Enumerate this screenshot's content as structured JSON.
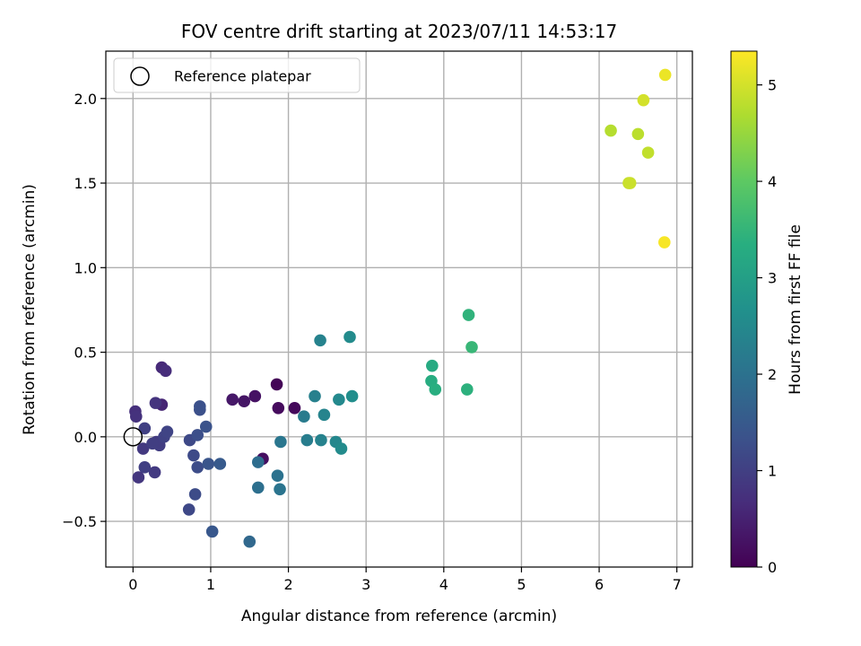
{
  "chart_data": {
    "type": "scatter",
    "title": "FOV centre drift starting at 2023/07/11 14:53:17",
    "xlabel": "Angular distance from reference (arcmin)",
    "ylabel": "Rotation from reference (arcmin)",
    "xlim": [
      -0.35,
      7.2
    ],
    "ylim": [
      -0.77,
      2.28
    ],
    "xticks": [
      0,
      1,
      2,
      3,
      4,
      5,
      6,
      7
    ],
    "yticks": [
      -0.5,
      0.0,
      0.5,
      1.0,
      1.5,
      2.0
    ],
    "xtick_labels": [
      "0",
      "1",
      "2",
      "3",
      "4",
      "5",
      "6",
      "7"
    ],
    "ytick_labels": [
      "−0.5",
      "0.0",
      "0.5",
      "1.0",
      "1.5",
      "2.0"
    ],
    "grid": true,
    "legend": {
      "placement": "top-left",
      "label": "Reference platepar"
    },
    "reference_point": {
      "x": 0.0,
      "y": 0.0
    },
    "colorbar": {
      "label": "Hours from first FF file",
      "range": [
        0,
        5.35
      ],
      "ticks": [
        0,
        1,
        2,
        3,
        4,
        5
      ],
      "tick_labels": [
        "0",
        "1",
        "2",
        "3",
        "4",
        "5"
      ],
      "colormap": "viridis"
    },
    "points": [
      {
        "x": 1.85,
        "y": 0.31,
        "c": 0.05
      },
      {
        "x": 2.08,
        "y": 0.17,
        "c": 0.1
      },
      {
        "x": 1.87,
        "y": 0.17,
        "c": 0.15
      },
      {
        "x": 1.67,
        "y": -0.13,
        "c": 0.2
      },
      {
        "x": 1.57,
        "y": 0.24,
        "c": 0.25
      },
      {
        "x": 1.43,
        "y": 0.21,
        "c": 0.3
      },
      {
        "x": 1.28,
        "y": 0.22,
        "c": 0.35
      },
      {
        "x": 0.37,
        "y": 0.19,
        "c": 0.55
      },
      {
        "x": 0.37,
        "y": 0.41,
        "c": 0.62
      },
      {
        "x": 0.42,
        "y": 0.39,
        "c": 0.68
      },
      {
        "x": 0.03,
        "y": 0.15,
        "c": 0.72
      },
      {
        "x": 0.04,
        "y": 0.12,
        "c": 0.76
      },
      {
        "x": 0.29,
        "y": 0.2,
        "c": 0.8
      },
      {
        "x": 0.07,
        "y": -0.24,
        "c": 0.85
      },
      {
        "x": 0.13,
        "y": -0.07,
        "c": 0.88
      },
      {
        "x": 0.28,
        "y": -0.21,
        "c": 0.9
      },
      {
        "x": 0.3,
        "y": -0.03,
        "c": 0.93
      },
      {
        "x": 0.34,
        "y": -0.05,
        "c": 0.95
      },
      {
        "x": 0.25,
        "y": -0.04,
        "c": 0.98
      },
      {
        "x": 0.15,
        "y": -0.18,
        "c": 1.0
      },
      {
        "x": 0.15,
        "y": 0.05,
        "c": 1.02
      },
      {
        "x": 0.4,
        "y": 0.0,
        "c": 1.05
      },
      {
        "x": 0.44,
        "y": 0.03,
        "c": 1.08
      },
      {
        "x": 0.72,
        "y": -0.43,
        "c": 1.15
      },
      {
        "x": 0.73,
        "y": -0.02,
        "c": 1.18
      },
      {
        "x": 0.78,
        "y": -0.11,
        "c": 1.2
      },
      {
        "x": 0.8,
        "y": -0.34,
        "c": 1.23
      },
      {
        "x": 0.83,
        "y": -0.18,
        "c": 1.25
      },
      {
        "x": 0.83,
        "y": 0.01,
        "c": 1.28
      },
      {
        "x": 0.86,
        "y": 0.16,
        "c": 1.3
      },
      {
        "x": 0.86,
        "y": 0.18,
        "c": 1.32
      },
      {
        "x": 0.94,
        "y": 0.06,
        "c": 1.35
      },
      {
        "x": 0.97,
        "y": -0.16,
        "c": 1.4
      },
      {
        "x": 1.02,
        "y": -0.56,
        "c": 1.45
      },
      {
        "x": 1.12,
        "y": -0.16,
        "c": 1.5
      },
      {
        "x": 1.5,
        "y": -0.62,
        "c": 1.8
      },
      {
        "x": 1.61,
        "y": -0.15,
        "c": 1.9
      },
      {
        "x": 1.61,
        "y": -0.3,
        "c": 1.95
      },
      {
        "x": 1.86,
        "y": -0.23,
        "c": 2.0
      },
      {
        "x": 1.89,
        "y": -0.31,
        "c": 2.05
      },
      {
        "x": 1.9,
        "y": -0.03,
        "c": 2.1
      },
      {
        "x": 2.2,
        "y": 0.12,
        "c": 2.2
      },
      {
        "x": 2.24,
        "y": -0.02,
        "c": 2.25
      },
      {
        "x": 2.34,
        "y": 0.24,
        "c": 2.3
      },
      {
        "x": 2.41,
        "y": 0.57,
        "c": 2.35
      },
      {
        "x": 2.42,
        "y": -0.02,
        "c": 2.35
      },
      {
        "x": 2.46,
        "y": 0.13,
        "c": 2.4
      },
      {
        "x": 2.61,
        "y": -0.03,
        "c": 2.45
      },
      {
        "x": 2.65,
        "y": 0.22,
        "c": 2.5
      },
      {
        "x": 2.68,
        "y": -0.07,
        "c": 2.55
      },
      {
        "x": 2.79,
        "y": 0.59,
        "c": 2.55
      },
      {
        "x": 2.82,
        "y": 0.24,
        "c": 2.6
      },
      {
        "x": 3.85,
        "y": 0.42,
        "c": 3.25
      },
      {
        "x": 3.84,
        "y": 0.33,
        "c": 3.3
      },
      {
        "x": 3.89,
        "y": 0.28,
        "c": 3.35
      },
      {
        "x": 4.3,
        "y": 0.28,
        "c": 3.4
      },
      {
        "x": 4.32,
        "y": 0.72,
        "c": 3.45
      },
      {
        "x": 4.36,
        "y": 0.53,
        "c": 3.55
      },
      {
        "x": 6.15,
        "y": 1.81,
        "c": 4.75
      },
      {
        "x": 6.5,
        "y": 1.79,
        "c": 4.8
      },
      {
        "x": 6.63,
        "y": 1.68,
        "c": 4.85
      },
      {
        "x": 6.38,
        "y": 1.5,
        "c": 4.9
      },
      {
        "x": 6.4,
        "y": 1.5,
        "c": 4.92
      },
      {
        "x": 6.57,
        "y": 1.99,
        "c": 5.0
      },
      {
        "x": 6.85,
        "y": 2.14,
        "c": 5.2
      },
      {
        "x": 6.84,
        "y": 1.15,
        "c": 5.3
      }
    ]
  }
}
